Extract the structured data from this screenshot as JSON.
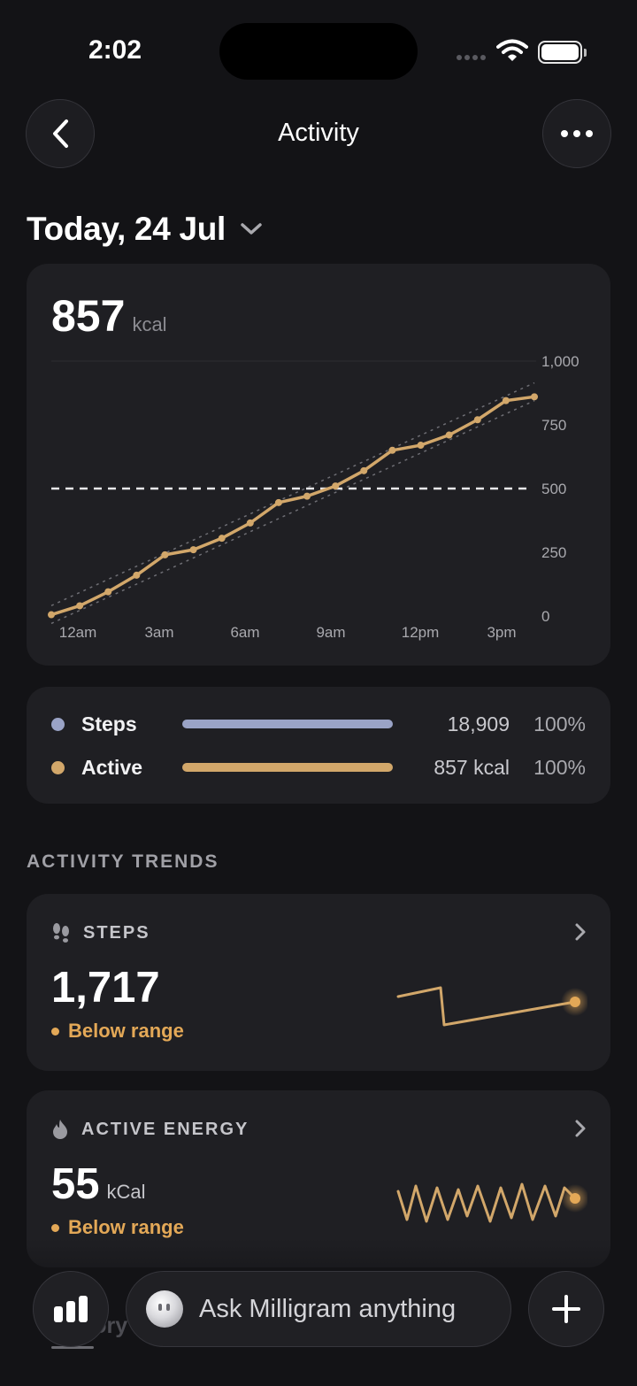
{
  "status_bar": {
    "time": "2:02"
  },
  "nav": {
    "title": "Activity"
  },
  "date": {
    "label": "Today, 24 Jul"
  },
  "summary": {
    "value": "857",
    "unit": "kcal"
  },
  "chart_data": {
    "type": "line",
    "x": [
      0,
      1,
      2,
      3,
      4,
      5,
      6,
      7,
      8,
      9,
      10,
      11,
      12,
      13,
      14,
      15,
      16,
      17
    ],
    "y": [
      5,
      40,
      95,
      160,
      240,
      260,
      305,
      365,
      445,
      470,
      510,
      570,
      650,
      670,
      710,
      770,
      845,
      860
    ],
    "x_tick_labels": [
      "12am",
      "3am",
      "6am",
      "9am",
      "12pm",
      "3pm"
    ],
    "y_tick_labels": [
      "0",
      "250",
      "500",
      "750",
      "1,000"
    ],
    "ylim": [
      0,
      1000
    ],
    "reference_line": 500,
    "grid": false,
    "color": "#d2a76a"
  },
  "legend": {
    "items": [
      {
        "label": "Steps",
        "value": "18,909",
        "percent": "100%",
        "fraction": 1.0,
        "color": "#9aa3c6"
      },
      {
        "label": "Active",
        "value": "857 kcal",
        "percent": "100%",
        "fraction": 1.0,
        "color": "#d2a76a"
      }
    ]
  },
  "trends": {
    "section_title": "ACTIVITY TRENDS",
    "cards": [
      {
        "title": "STEPS",
        "icon": "footprints-icon",
        "value": "1,717",
        "unit": "",
        "status": "Below range"
      },
      {
        "title": "ACTIVE ENERGY",
        "icon": "flame-icon",
        "value": "55",
        "unit": "kCal",
        "status": "Below range"
      }
    ]
  },
  "bottom_bar": {
    "ask_placeholder": "Ask Milligram anything",
    "ghost_tab": "History"
  },
  "colors": {
    "accent": "#e3a857",
    "background": "#131316",
    "card": "#1f1f23"
  }
}
